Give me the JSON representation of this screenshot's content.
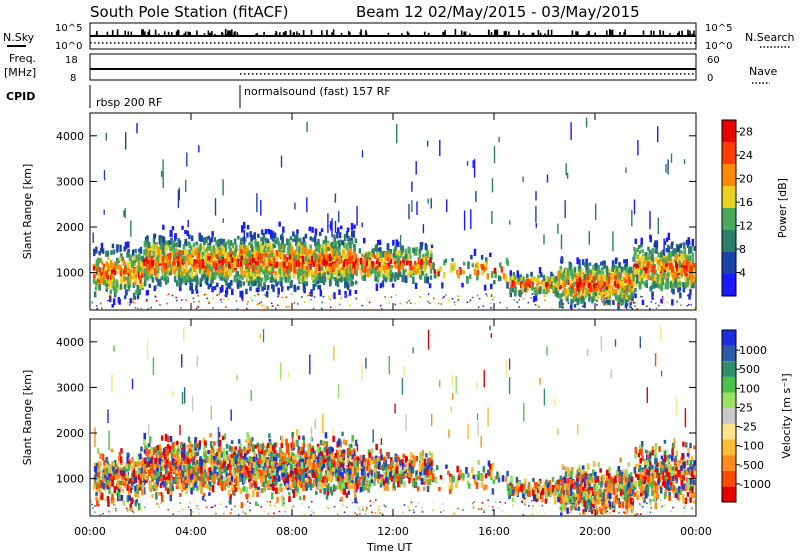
{
  "title": "South Pole Station (fitACF)",
  "beam_info": "Beam 12 02/May/2015 - 03/May/2015",
  "header": {
    "nsky_label": "N.Sky",
    "nsky_ticks": [
      "10^5",
      "10^0"
    ],
    "nsearch_label": "N.Search",
    "nsearch_ticks": [
      "10^5",
      "10^0"
    ],
    "freq_label_1": "Freq.",
    "freq_label_2": "[MHz]",
    "freq_ticks": [
      "18",
      "8"
    ],
    "nave_label": "Nave",
    "nave_ticks": [
      "60",
      "0"
    ],
    "cpid_label": "CPID",
    "cpid_segments": [
      "rbsp 200 RF",
      "normalsound (fast) 157 RF"
    ]
  },
  "colors": {
    "power": [
      "#1a1aff",
      "#1c44a6",
      "#2f7d6b",
      "#4aa85a",
      "#e6d21f",
      "#ff8c00",
      "#ff3d00",
      "#e60000"
    ],
    "velocity": [
      "#e60000",
      "#ff4a00",
      "#ff8c1a",
      "#ffbb33",
      "#ffe28a",
      "#c8c8c8",
      "#99e066",
      "#4cc04c",
      "#2f8f6b",
      "#2a5aa8",
      "#1a2fe0"
    ]
  },
  "chart_data": [
    {
      "type": "heatmap",
      "ylabel": "Slant Range [km]",
      "xlabel": "Time UT",
      "x_ticks": [
        "00:00",
        "04:00",
        "08:00",
        "12:00",
        "16:00",
        "20:00",
        "00:00"
      ],
      "xlim_hours": [
        0,
        24
      ],
      "y_ticks": [
        1000,
        2000,
        3000,
        4000
      ],
      "ylim": [
        180,
        4500
      ],
      "colorbar_label": "Power [dB]",
      "colorbar_ticks": [
        4,
        8,
        12,
        16,
        20,
        24,
        28
      ],
      "colorbar_range": [
        0,
        30
      ]
    },
    {
      "type": "heatmap",
      "ylabel": "Slant Range [km]",
      "xlabel": "Time UT",
      "x_ticks": [
        "00:00",
        "04:00",
        "08:00",
        "12:00",
        "16:00",
        "20:00",
        "00:00"
      ],
      "xlim_hours": [
        0,
        24
      ],
      "y_ticks": [
        1000,
        2000,
        3000,
        4000
      ],
      "ylim": [
        180,
        4500
      ],
      "colorbar_label": "Velocity [m s⁻¹]",
      "colorbar_ticks": [
        "1000",
        "500",
        "100",
        "25",
        "-25",
        "-100",
        "-500",
        "-1000"
      ]
    }
  ]
}
